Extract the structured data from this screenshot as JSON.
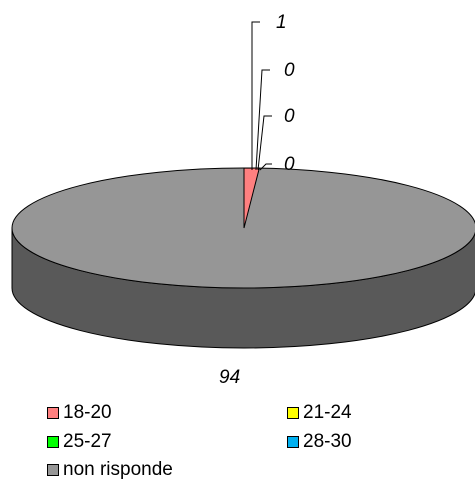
{
  "chart_data": {
    "type": "pie",
    "categories": [
      "18-20",
      "21-24",
      "25-27",
      "28-30",
      "non risponde"
    ],
    "values": [
      1,
      0,
      0,
      0,
      94
    ],
    "value_labels": [
      "1",
      "0",
      "0",
      "0",
      "94"
    ],
    "colors": [
      "#FF8080",
      "#FFFF00",
      "#00FF00",
      "#00B0F0",
      "#969696"
    ],
    "legend": [
      "18-20",
      "21-24",
      "25-27",
      "28-30",
      "non risponde"
    ],
    "legend_position": "bottom"
  }
}
